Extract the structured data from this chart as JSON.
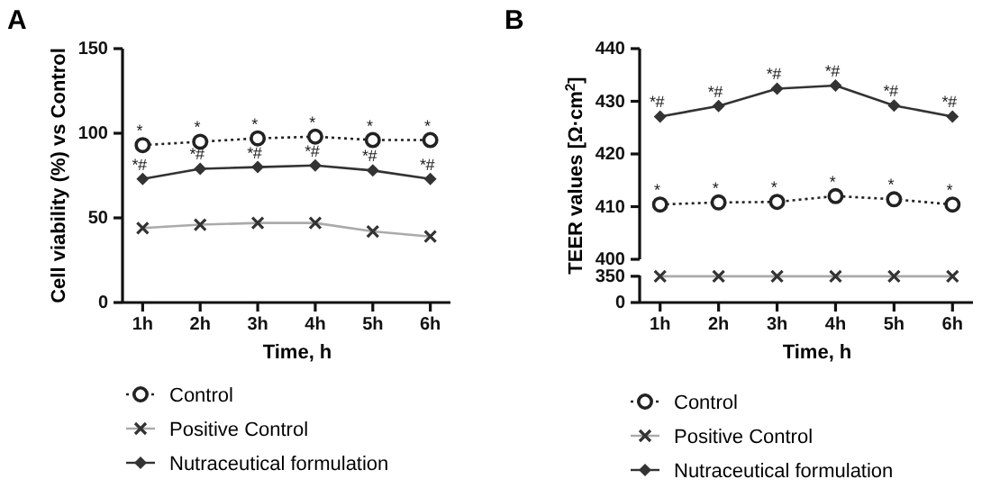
{
  "chart_data": [
    {
      "type": "line",
      "title": "A",
      "xlabel": "Time, h",
      "ylabel": "Cell viability (%) vs Control",
      "categories": [
        "1h",
        "2h",
        "3h",
        "4h",
        "5h",
        "6h"
      ],
      "ylim": [
        0,
        150
      ],
      "yticks": [
        0,
        50,
        100,
        150
      ],
      "legend": "bottom",
      "series": [
        {
          "name": "Control",
          "color": "#222222",
          "marker": "circle",
          "line_style": "dotted",
          "values": [
            93,
            95,
            97,
            98,
            96,
            96
          ]
        },
        {
          "name": "Positive Control",
          "color": "#333333",
          "marker": "cross",
          "line_style": "solid",
          "values": [
            44,
            46,
            47,
            47,
            42,
            39
          ]
        },
        {
          "name": "Nutraceutical formulation",
          "color": "#333333",
          "marker": "diamond",
          "line_style": "solid",
          "values": [
            73,
            79,
            80,
            81,
            78,
            73
          ]
        }
      ],
      "annotations": [
        {
          "text": "*",
          "x": "1h",
          "y": 93
        },
        {
          "text": "*",
          "x": "2h",
          "y": 95
        },
        {
          "text": "*",
          "x": "3h",
          "y": 97
        },
        {
          "text": "*",
          "x": "4h",
          "y": 98
        },
        {
          "text": "*",
          "x": "5h",
          "y": 96
        },
        {
          "text": "*",
          "x": "6h",
          "y": 96
        },
        {
          "text": "*#",
          "x": "1h",
          "y": 73
        },
        {
          "text": "*#",
          "x": "2h",
          "y": 79
        },
        {
          "text": "*#",
          "x": "3h",
          "y": 80
        },
        {
          "text": "*#",
          "x": "4h",
          "y": 81
        },
        {
          "text": "*#",
          "x": "5h",
          "y": 78
        },
        {
          "text": "*#",
          "x": "6h",
          "y": 73
        }
      ]
    },
    {
      "type": "line",
      "title": "B",
      "ylabel": "TEER values [Ω·cm$^{2}$]",
      "categories": [
        "1h",
        "2h",
        "3h",
        "4h",
        "5h",
        "6h"
      ],
      "ylim": [
        400,
        440
      ],
      "yticks": [
        400,
        410,
        420,
        430,
        440
      ],
      "tick_labels": "y",
      "legend": "bottom",
      "series": [
        {
          "name": "Control",
          "color": "#222222",
          "marker": "circle",
          "line_style": "dotted",
          "values": [
            410.4,
            410.8,
            410.9,
            412.0,
            411.4,
            410.4
          ]
        },
        {
          "name": "Positive Control",
          "color": "#333333",
          "marker": "cross",
          "line_style": "solid",
          "values": [
            null,
            null,
            null,
            null,
            null,
            null
          ]
        },
        {
          "name": "Nutraceutical formulation",
          "color": "#333333",
          "marker": "diamond",
          "line_style": "solid",
          "values": [
            427.1,
            429.1,
            432.4,
            433.0,
            429.2,
            427.1
          ]
        }
      ],
      "annotations": [
        {
          "text": "*",
          "x": "1h",
          "y": 410.4
        },
        {
          "text": "*",
          "x": "2h",
          "y": 410.8
        },
        {
          "text": "*",
          "x": "3h",
          "y": 410.9
        },
        {
          "text": "*",
          "x": "4h",
          "y": 412.0
        },
        {
          "text": "*",
          "x": "5h",
          "y": 411.4
        },
        {
          "text": "*",
          "x": "6h",
          "y": 410.4
        },
        {
          "text": "*#",
          "x": "1h",
          "y": 427.1
        },
        {
          "text": "*#",
          "x": "2h",
          "y": 429.1
        },
        {
          "text": "*#",
          "x": "3h",
          "y": 432.4
        },
        {
          "text": "*#",
          "x": "4h",
          "y": 433.0
        },
        {
          "text": "*#",
          "x": "5h",
          "y": 429.2
        },
        {
          "text": "*#",
          "x": "6h",
          "y": 427.1
        }
      ]
    },
    {
      "type": "line",
      "xlabel": "Time, h",
      "categories": [
        "1h",
        "2h",
        "3h",
        "4h",
        "5h",
        "6h"
      ],
      "ylim": [
        0,
        360
      ],
      "yticks": [
        0,
        350
      ],
      "series": [
        {
          "color": "#333333",
          "marker": "cross",
          "line_style": "solid",
          "values": [
            350,
            350,
            350,
            350,
            350,
            350
          ]
        }
      ]
    }
  ]
}
